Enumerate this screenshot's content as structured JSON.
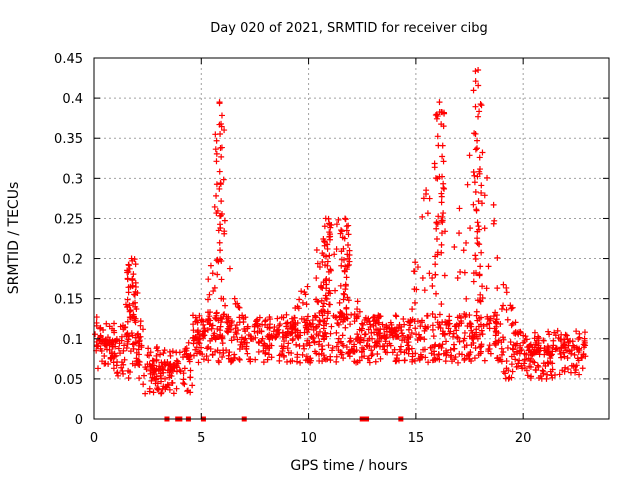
{
  "chart_data": {
    "type": "scatter",
    "title": "Day 020 of 2021, SRMTID for receiver cibg",
    "xlabel": "GPS time / hours",
    "ylabel": "SRMTID / TECUs",
    "xlim": [
      0,
      24
    ],
    "ylim": [
      0,
      0.45
    ],
    "xticks": [
      0,
      5,
      10,
      15,
      20
    ],
    "xtick_labels": [
      "0",
      "5",
      "10",
      "15",
      "20"
    ],
    "yticks": [
      0,
      0.05,
      0.1,
      0.15,
      0.2,
      0.25,
      0.3,
      0.35,
      0.4,
      0.45
    ],
    "ytick_labels": [
      "0",
      "0.05",
      "0.1",
      "0.15",
      "0.2",
      "0.25",
      "0.3",
      "0.35",
      "0.4",
      "0.45"
    ],
    "grid": true,
    "marker_color": "#ff0000",
    "marker": "+",
    "data_range_hours": [
      0,
      22.9
    ],
    "series": [
      {
        "name": "SRMTID",
        "envelope": [
          {
            "x": 0.0,
            "y": 0.15
          },
          {
            "x": 0.5,
            "y": 0.1
          },
          {
            "x": 1.0,
            "y": 0.09
          },
          {
            "x": 1.8,
            "y": 0.2
          },
          {
            "x": 2.5,
            "y": 0.08
          },
          {
            "x": 3.5,
            "y": 0.07
          },
          {
            "x": 4.5,
            "y": 0.1
          },
          {
            "x": 5.2,
            "y": 0.12
          },
          {
            "x": 5.8,
            "y": 0.395
          },
          {
            "x": 6.5,
            "y": 0.16
          },
          {
            "x": 7.5,
            "y": 0.12
          },
          {
            "x": 9.0,
            "y": 0.11
          },
          {
            "x": 10.8,
            "y": 0.25
          },
          {
            "x": 11.5,
            "y": 0.25
          },
          {
            "x": 12.5,
            "y": 0.12
          },
          {
            "x": 13.5,
            "y": 0.12
          },
          {
            "x": 14.5,
            "y": 0.11
          },
          {
            "x": 16.0,
            "y": 0.395
          },
          {
            "x": 16.7,
            "y": 0.2
          },
          {
            "x": 17.9,
            "y": 0.435
          },
          {
            "x": 19.0,
            "y": 0.19
          },
          {
            "x": 20.0,
            "y": 0.1
          },
          {
            "x": 21.0,
            "y": 0.09
          },
          {
            "x": 22.0,
            "y": 0.1
          },
          {
            "x": 22.9,
            "y": 0.08
          }
        ],
        "peaks": [
          {
            "x": 5.85,
            "y": 0.395
          },
          {
            "x": 16.1,
            "y": 0.395
          },
          {
            "x": 17.9,
            "y": 0.435
          },
          {
            "x": 10.8,
            "y": 0.25
          },
          {
            "x": 11.7,
            "y": 0.25
          },
          {
            "x": 1.75,
            "y": 0.2
          }
        ]
      }
    ],
    "zero_markers_x": [
      3.4,
      3.9,
      4.0,
      4.4,
      5.1,
      7.0,
      12.5,
      12.7,
      14.3
    ]
  }
}
